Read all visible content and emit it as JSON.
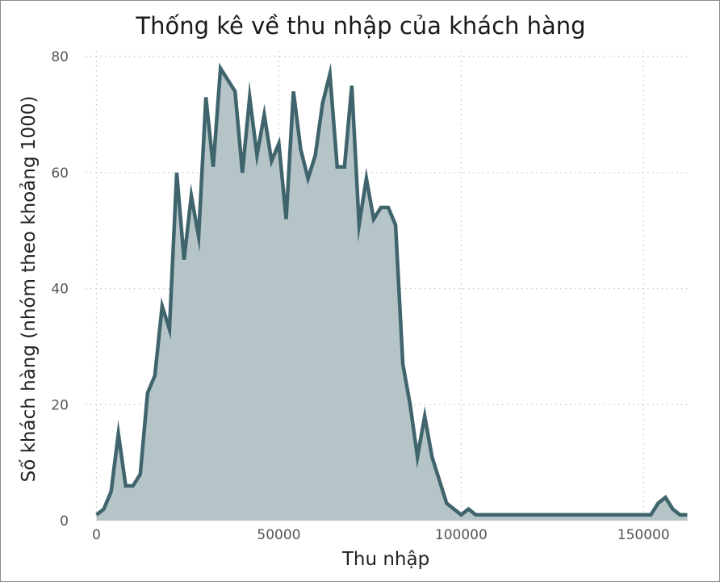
{
  "chart_data": {
    "type": "area",
    "title": "Thống kê về thu nhập của khách hàng",
    "xlabel": "Thu nhập",
    "ylabel": "Số khách hàng (nhóm theo khoảng 1000)",
    "xlim": [
      -3000,
      163000
    ],
    "ylim": [
      0,
      81
    ],
    "x_ticks": [
      0,
      50000,
      100000,
      150000
    ],
    "x_tick_labels": [
      "0",
      "50000",
      "100000",
      "150000"
    ],
    "y_ticks": [
      0,
      20,
      40,
      60,
      80
    ],
    "y_tick_labels": [
      "0",
      "20",
      "40",
      "60",
      "80"
    ],
    "grid": true,
    "legend": "none",
    "colors": {
      "line": "#3f646c",
      "fill": "#b4c4c7"
    },
    "series": [
      {
        "x": [
          0,
          2000,
          4000,
          6000,
          8000,
          10000,
          12000,
          14000,
          16000,
          18000,
          20000,
          22000,
          24000,
          26000,
          28000,
          30000,
          32000,
          34000,
          36000,
          38000,
          40000,
          42000,
          44000,
          46000,
          48000,
          50000,
          52000,
          54000,
          56000,
          58000,
          60000,
          62000,
          64000,
          66000,
          68000,
          70000,
          72000,
          74000,
          76000,
          78000,
          80000,
          82000,
          84000,
          86000,
          88000,
          90000,
          92000,
          94000,
          96000,
          98000,
          100000,
          102000,
          104000,
          106000,
          150000,
          152000,
          154000,
          156000,
          158000,
          160000,
          162000
        ],
        "values": [
          1,
          2,
          5,
          15,
          6,
          6,
          8,
          22,
          25,
          37,
          33,
          60,
          45,
          56,
          49,
          73,
          61,
          78,
          76,
          74,
          60,
          73,
          63,
          70,
          62,
          65,
          52,
          74,
          64,
          59,
          63,
          72,
          77,
          61,
          61,
          75,
          51,
          59,
          52,
          54,
          54,
          51,
          27,
          20,
          11,
          18,
          11,
          7,
          3,
          2,
          1,
          2,
          1,
          1,
          1,
          1,
          3,
          4,
          2,
          1,
          1
        ]
      }
    ]
  }
}
